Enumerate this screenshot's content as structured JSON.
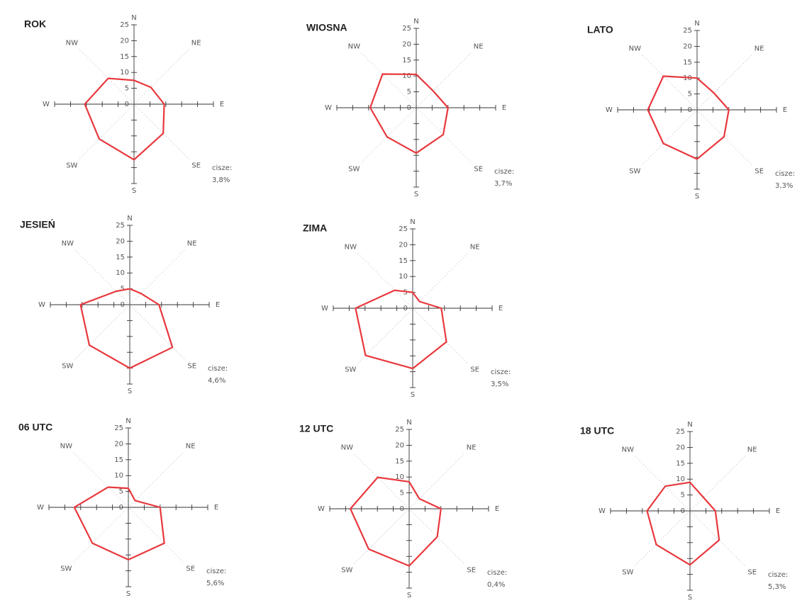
{
  "chart_data": [
    {
      "type": "radar",
      "title": "ROK",
      "categories": [
        "N",
        "NE",
        "E",
        "SE",
        "S",
        "SW",
        "W",
        "NW"
      ],
      "values": [
        7.5,
        7.5,
        9.5,
        13,
        17.5,
        15.5,
        15.5,
        11.5
      ],
      "color": "#e8383d",
      "rlim": [
        0,
        25
      ],
      "rticks": [
        0,
        5,
        10,
        15,
        20,
        25
      ],
      "annotation": "cisze:",
      "calm": "3,8%"
    },
    {
      "type": "radar",
      "title": "WIOSNA",
      "categories": [
        "N",
        "NE",
        "E",
        "SE",
        "S",
        "SW",
        "W",
        "NW"
      ],
      "values": [
        10.5,
        7.5,
        10,
        12,
        14.3,
        13,
        14.5,
        15
      ],
      "color": "#e8383d",
      "rlim": [
        0,
        25
      ],
      "rticks": [
        0,
        5,
        10,
        15,
        20,
        25
      ],
      "annotation": "cisze:",
      "calm": "3,7%"
    },
    {
      "type": "radar",
      "title": "LATO",
      "categories": [
        "N",
        "NE",
        "E",
        "SE",
        "S",
        "SW",
        "W",
        "NW"
      ],
      "values": [
        10,
        7.5,
        10,
        12,
        15.5,
        15,
        15.5,
        15
      ],
      "color": "#e8383d",
      "rlim": [
        0,
        25
      ],
      "rticks": [
        0,
        5,
        10,
        15,
        20,
        25
      ],
      "annotation": "cisze:",
      "calm": "3,3%"
    },
    {
      "type": "radar",
      "title": "JESIEŃ",
      "categories": [
        "N",
        "NE",
        "E",
        "SE",
        "S",
        "SW",
        "W",
        "NW"
      ],
      "values": [
        5,
        5,
        9.2,
        19,
        20,
        18,
        15.5,
        6
      ],
      "color": "#e8383d",
      "rlim": [
        0,
        25
      ],
      "rticks": [
        0,
        5,
        10,
        15,
        20,
        25
      ],
      "annotation": "cisze:",
      "calm": "4,6%"
    },
    {
      "type": "radar",
      "title": "ZIMA",
      "categories": [
        "N",
        "NE",
        "E",
        "SE",
        "S",
        "SW",
        "W",
        "NW"
      ],
      "values": [
        5,
        3,
        9,
        15,
        19,
        21,
        18,
        8
      ],
      "color": "#e8383d",
      "rlim": [
        0,
        25
      ],
      "rticks": [
        0,
        5,
        10,
        15,
        20,
        25
      ],
      "annotation": "cisze:",
      "calm": "3,5%"
    },
    {
      "type": "radar",
      "title": "06 UTC",
      "categories": [
        "N",
        "NE",
        "E",
        "SE",
        "S",
        "SW",
        "W",
        "NW"
      ],
      "values": [
        6,
        3,
        10,
        16,
        16.5,
        16,
        17,
        9
      ],
      "color": "#e8383d",
      "rlim": [
        0,
        25
      ],
      "rticks": [
        0,
        5,
        10,
        15,
        20,
        25
      ],
      "annotation": "cisze:",
      "calm": "5,6%"
    },
    {
      "type": "radar",
      "title": "12 UTC",
      "categories": [
        "N",
        "NE",
        "E",
        "SE",
        "S",
        "SW",
        "W",
        "NW"
      ],
      "values": [
        8.5,
        4.5,
        10,
        12.5,
        18,
        18,
        18.5,
        14
      ],
      "color": "#e8383d",
      "rlim": [
        0,
        25
      ],
      "rticks": [
        0,
        5,
        10,
        15,
        20,
        25
      ],
      "annotation": "cisze:",
      "calm": "0,4%"
    },
    {
      "type": "radar",
      "title": "18 UTC",
      "categories": [
        "N",
        "NE",
        "E",
        "SE",
        "S",
        "SW",
        "W",
        "NW"
      ],
      "values": [
        9,
        6,
        8,
        13,
        17,
        15,
        13.5,
        11
      ],
      "color": "#e8383d",
      "rlim": [
        0,
        25
      ],
      "rticks": [
        0,
        5,
        10,
        15,
        20,
        25
      ],
      "annotation": "cisze:",
      "calm": "5,3%"
    }
  ]
}
